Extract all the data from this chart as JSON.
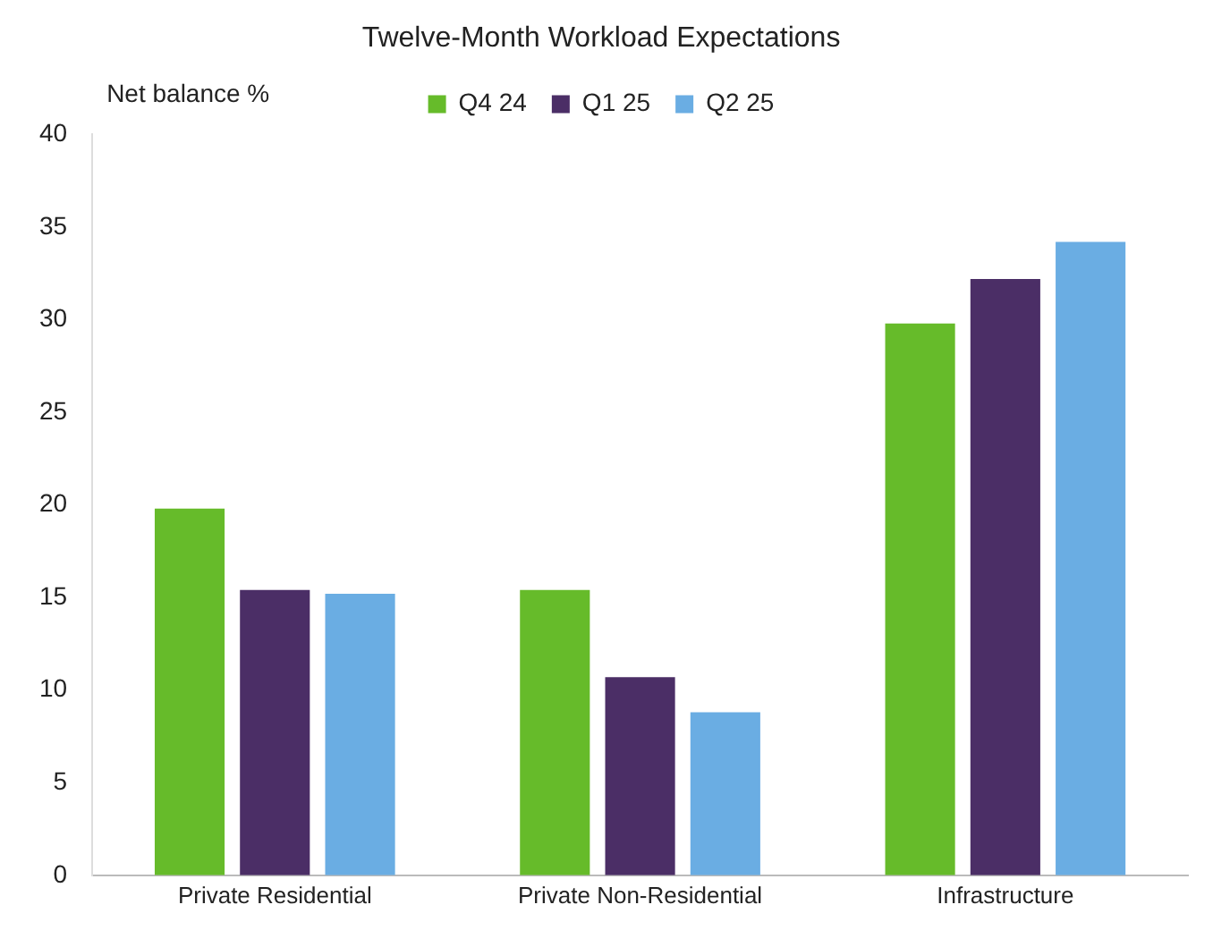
{
  "chart_data": {
    "type": "bar",
    "title": "Twelve-Month Workload Expectations",
    "ylabel": "Net balance %",
    "categories": [
      "Private Residential",
      "Private Non-Residential",
      "Infrastructure"
    ],
    "series": [
      {
        "name": "Q4 24",
        "color": "#66bb2a",
        "values": [
          19.8,
          15.4,
          29.8
        ]
      },
      {
        "name": "Q1 25",
        "color": "#4b2e66",
        "values": [
          15.4,
          10.7,
          32.2
        ]
      },
      {
        "name": "Q2 25",
        "color": "#6aade3",
        "values": [
          15.2,
          8.8,
          34.2
        ]
      }
    ],
    "ylim": [
      0,
      40
    ],
    "yticks": [
      0,
      5,
      10,
      15,
      20,
      25,
      30,
      35,
      40
    ],
    "grid": false,
    "legend": "top"
  }
}
